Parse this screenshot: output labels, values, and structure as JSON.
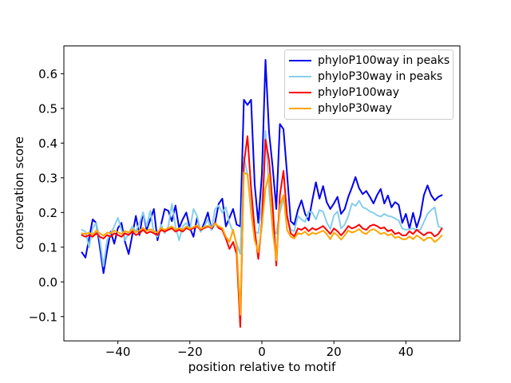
{
  "chart_data": {
    "type": "line",
    "title": "",
    "xlabel": "position relative to motif",
    "ylabel": "conservation score",
    "xlim": [
      -55,
      55
    ],
    "ylim": [
      -0.17,
      0.68
    ],
    "xticks": [
      -40,
      -20,
      0,
      20,
      40
    ],
    "yticks": [
      -0.1,
      0.0,
      0.1,
      0.2,
      0.3,
      0.4,
      0.5,
      0.6
    ],
    "grid": false,
    "legend_position": "upper right",
    "x": [
      -50,
      -49,
      -48,
      -47,
      -46,
      -45,
      -44,
      -43,
      -42,
      -41,
      -40,
      -39,
      -38,
      -37,
      -36,
      -35,
      -34,
      -33,
      -32,
      -31,
      -30,
      -29,
      -28,
      -27,
      -26,
      -25,
      -24,
      -23,
      -22,
      -21,
      -20,
      -19,
      -18,
      -17,
      -16,
      -15,
      -14,
      -13,
      -12,
      -11,
      -10,
      -9,
      -8,
      -7,
      -6,
      -5,
      -4,
      -3,
      -2,
      -1,
      0,
      1,
      2,
      3,
      4,
      5,
      6,
      7,
      8,
      9,
      10,
      11,
      12,
      13,
      14,
      15,
      16,
      17,
      18,
      19,
      20,
      21,
      22,
      23,
      24,
      25,
      26,
      27,
      28,
      29,
      30,
      31,
      32,
      33,
      34,
      35,
      36,
      37,
      38,
      39,
      40,
      41,
      42,
      43,
      44,
      45,
      46,
      47,
      48,
      49,
      50
    ],
    "series": [
      {
        "name": "phyloP100way in peaks",
        "color": "#0000ee",
        "values": [
          0.085,
          0.07,
          0.125,
          0.18,
          0.17,
          0.1,
          0.025,
          0.09,
          0.145,
          0.11,
          0.155,
          0.17,
          0.115,
          0.08,
          0.135,
          0.19,
          0.135,
          0.2,
          0.15,
          0.18,
          0.21,
          0.12,
          0.165,
          0.21,
          0.205,
          0.175,
          0.22,
          0.155,
          0.18,
          0.2,
          0.155,
          0.13,
          0.185,
          0.145,
          0.17,
          0.2,
          0.15,
          0.17,
          0.225,
          0.24,
          0.16,
          0.185,
          0.21,
          0.165,
          0.16,
          0.525,
          0.51,
          0.525,
          0.28,
          0.17,
          0.31,
          0.64,
          0.43,
          0.33,
          0.21,
          0.455,
          0.44,
          0.31,
          0.175,
          0.165,
          0.207,
          0.235,
          0.196,
          0.177,
          0.235,
          0.287,
          0.24,
          0.276,
          0.23,
          0.21,
          0.226,
          0.245,
          0.196,
          0.21,
          0.245,
          0.272,
          0.302,
          0.27,
          0.253,
          0.262,
          0.245,
          0.226,
          0.25,
          0.268,
          0.226,
          0.249,
          0.215,
          0.23,
          0.222,
          0.17,
          0.196,
          0.154,
          0.199,
          0.157,
          0.19,
          0.25,
          0.278,
          0.25,
          0.235,
          0.245,
          0.25
        ]
      },
      {
        "name": "phyloP30way in peaks",
        "color": "#87ceeb",
        "values": [
          0.15,
          0.145,
          0.1,
          0.155,
          0.17,
          0.12,
          0.045,
          0.12,
          0.14,
          0.16,
          0.185,
          0.15,
          0.12,
          0.14,
          0.16,
          0.145,
          0.17,
          0.2,
          0.16,
          0.205,
          0.14,
          0.13,
          0.165,
          0.14,
          0.16,
          0.225,
          0.16,
          0.12,
          0.16,
          0.17,
          0.15,
          0.21,
          0.19,
          0.145,
          0.16,
          0.18,
          0.15,
          0.21,
          0.22,
          0.2,
          0.215,
          0.17,
          0.145,
          0.11,
          0.08,
          0.36,
          0.31,
          0.22,
          0.145,
          0.14,
          0.22,
          0.435,
          0.26,
          0.15,
          0.139,
          0.2,
          0.24,
          0.19,
          0.15,
          0.146,
          0.19,
          0.18,
          0.173,
          0.203,
          0.2,
          0.18,
          0.207,
          0.203,
          0.172,
          0.152,
          0.192,
          0.203,
          0.154,
          0.165,
          0.19,
          0.226,
          0.219,
          0.234,
          0.215,
          0.211,
          0.203,
          0.199,
          0.192,
          0.188,
          0.196,
          0.19,
          0.188,
          0.183,
          0.177,
          0.154,
          0.15,
          0.152,
          0.154,
          0.15,
          0.15,
          0.173,
          0.196,
          0.207,
          0.215,
          0.161,
          0.154
        ]
      },
      {
        "name": "phyloP100way",
        "color": "#ff0000",
        "values": [
          0.135,
          0.13,
          0.135,
          0.13,
          0.14,
          0.13,
          0.125,
          0.135,
          0.13,
          0.14,
          0.135,
          0.13,
          0.14,
          0.135,
          0.145,
          0.135,
          0.14,
          0.15,
          0.14,
          0.145,
          0.14,
          0.135,
          0.15,
          0.145,
          0.15,
          0.155,
          0.145,
          0.15,
          0.145,
          0.155,
          0.15,
          0.155,
          0.16,
          0.15,
          0.155,
          0.16,
          0.155,
          0.17,
          0.155,
          0.15,
          0.125,
          0.095,
          0.115,
          0.08,
          -0.13,
          0.34,
          0.42,
          0.27,
          0.15,
          0.066,
          0.17,
          0.41,
          0.35,
          0.22,
          0.047,
          0.25,
          0.32,
          0.19,
          0.14,
          0.131,
          0.154,
          0.15,
          0.157,
          0.146,
          0.155,
          0.15,
          0.155,
          0.161,
          0.15,
          0.138,
          0.154,
          0.146,
          0.134,
          0.146,
          0.161,
          0.154,
          0.158,
          0.165,
          0.154,
          0.15,
          0.161,
          0.165,
          0.161,
          0.154,
          0.157,
          0.146,
          0.15,
          0.138,
          0.142,
          0.134,
          0.134,
          0.146,
          0.138,
          0.15,
          0.142,
          0.134,
          0.142,
          0.142,
          0.131,
          0.138,
          0.154
        ]
      },
      {
        "name": "phyloP30way",
        "color": "#ffa500",
        "values": [
          0.14,
          0.138,
          0.142,
          0.136,
          0.148,
          0.14,
          0.133,
          0.142,
          0.14,
          0.148,
          0.143,
          0.138,
          0.147,
          0.142,
          0.152,
          0.143,
          0.148,
          0.156,
          0.147,
          0.152,
          0.146,
          0.142,
          0.156,
          0.15,
          0.155,
          0.16,
          0.15,
          0.155,
          0.15,
          0.16,
          0.153,
          0.158,
          0.163,
          0.153,
          0.158,
          0.162,
          0.157,
          0.168,
          0.16,
          0.155,
          0.13,
          0.115,
          0.15,
          0.105,
          -0.095,
          0.315,
          0.31,
          0.2,
          0.12,
          0.085,
          0.16,
          0.27,
          0.31,
          0.15,
          0.062,
          0.22,
          0.25,
          0.15,
          0.13,
          0.125,
          0.14,
          0.138,
          0.145,
          0.134,
          0.142,
          0.138,
          0.143,
          0.148,
          0.138,
          0.123,
          0.142,
          0.134,
          0.122,
          0.134,
          0.148,
          0.142,
          0.146,
          0.152,
          0.142,
          0.138,
          0.148,
          0.152,
          0.146,
          0.138,
          0.142,
          0.134,
          0.138,
          0.127,
          0.13,
          0.123,
          0.123,
          0.131,
          0.123,
          0.134,
          0.127,
          0.119,
          0.127,
          0.127,
          0.115,
          0.123,
          0.134
        ]
      }
    ]
  }
}
